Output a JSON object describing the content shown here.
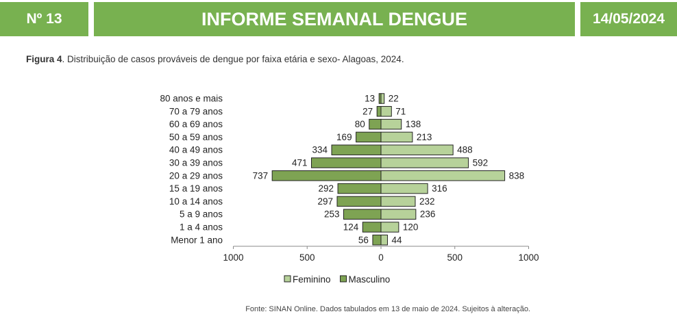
{
  "header": {
    "number": "Nº 13",
    "title": "INFORME SEMANAL DENGUE",
    "date": "14/05/2024"
  },
  "caption": {
    "figure_label": "Figura 4",
    "text": ". Distribuição de casos prováveis de dengue por faixa etária e sexo- Alagoas, 2024."
  },
  "source": "Fonte: SINAN Online. Dados tabulados em 13 de maio de 2024. Sujeitos à alteração.",
  "colors": {
    "banner": "#78b150",
    "feminino": "#b7d29a",
    "masculino": "#7ea353",
    "bar_stroke": "#222222"
  },
  "chart_data": {
    "type": "bar",
    "orientation": "horizontal",
    "layout": "population-pyramid",
    "categories": [
      "80 anos e mais",
      "70 a 79 anos",
      "60 a 69 anos",
      "50 a 59 anos",
      "40 a 49 anos",
      "30 a 39 anos",
      "20 a 29 anos",
      "15 a 19 anos",
      "10 a 14 anos",
      "5 a 9 anos",
      "1 a 4 anos",
      "Menor 1 ano"
    ],
    "series": [
      {
        "name": "Feminino",
        "side": "right",
        "color": "#b7d29a",
        "values": [
          22,
          71,
          138,
          213,
          488,
          592,
          838,
          316,
          232,
          236,
          120,
          44
        ]
      },
      {
        "name": "Masculino",
        "side": "left",
        "color": "#7ea353",
        "values": [
          13,
          27,
          80,
          169,
          334,
          471,
          737,
          292,
          297,
          253,
          124,
          56
        ]
      }
    ],
    "xlim": [
      -1000,
      1000
    ],
    "xticks": [
      -1000,
      -500,
      0,
      500,
      1000
    ],
    "xtick_labels": [
      "1000",
      "500",
      "0",
      "500",
      "1000"
    ],
    "legend_position": "bottom",
    "grid": false
  }
}
